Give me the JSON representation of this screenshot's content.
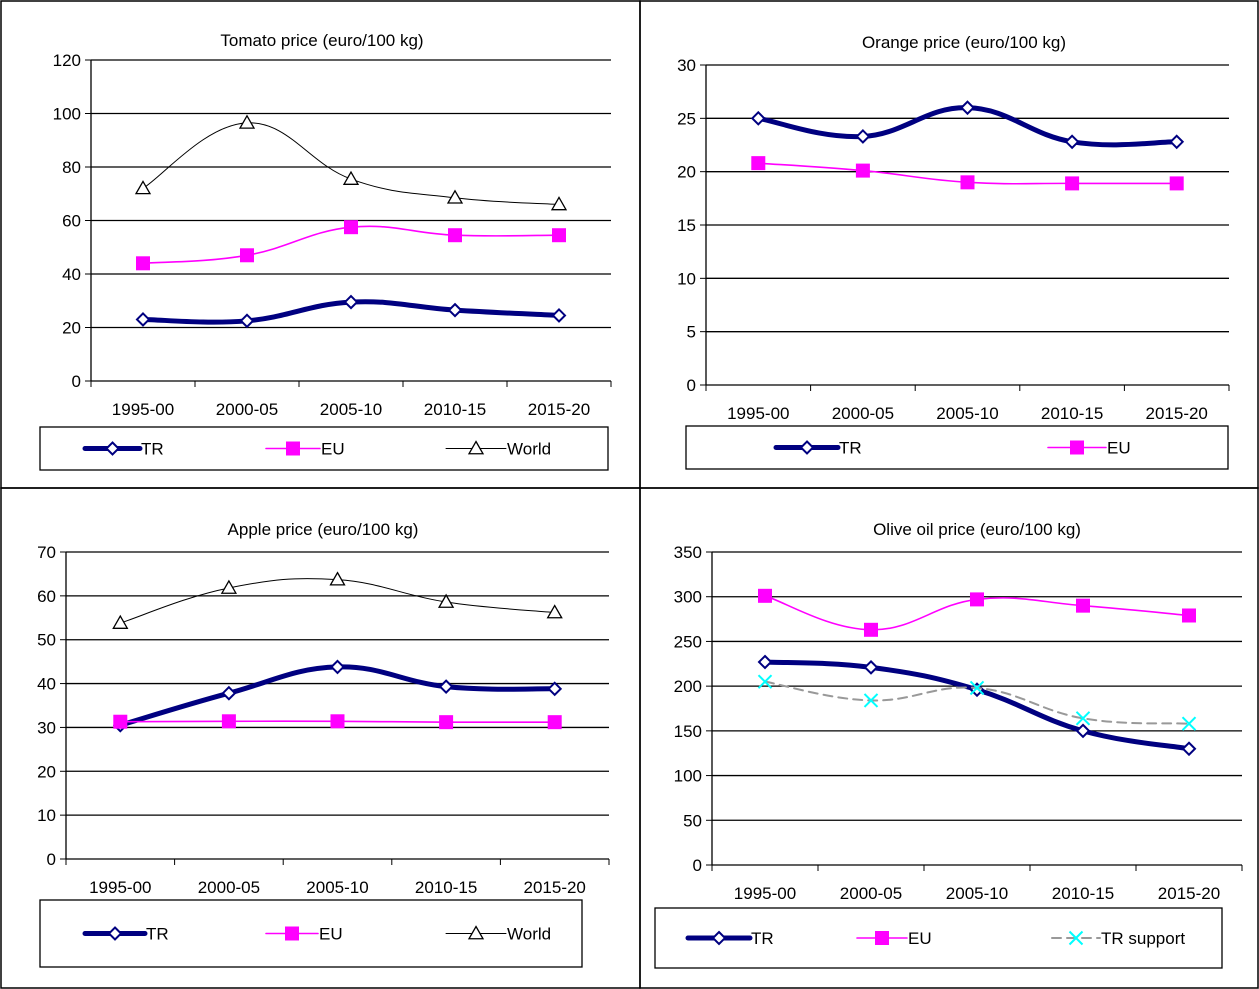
{
  "chart_data": [
    {
      "type": "line",
      "title": "Tomato price (euro/100 kg)",
      "categories": [
        "1995-00",
        "2000-05",
        "2005-10",
        "2010-15",
        "2015-20"
      ],
      "ylim": [
        0,
        120
      ],
      "ytick_step": 20,
      "grid": true,
      "legend_position": "bottom",
      "series": [
        {
          "name": "TR",
          "values": [
            23,
            22.5,
            29.5,
            26.5,
            24.5
          ],
          "color": "#000080",
          "marker": "diamond",
          "style": "thick"
        },
        {
          "name": "EU",
          "values": [
            44,
            47,
            57.5,
            54.5,
            54.5
          ],
          "color": "#ff00ff",
          "marker": "square",
          "style": "medium"
        },
        {
          "name": "World",
          "values": [
            72,
            96.5,
            75.5,
            68.5,
            66
          ],
          "color": "#000000",
          "marker": "triangle",
          "style": "thin"
        }
      ]
    },
    {
      "type": "line",
      "title": "Orange price (euro/100 kg)",
      "categories": [
        "1995-00",
        "2000-05",
        "2005-10",
        "2010-15",
        "2015-20"
      ],
      "ylim": [
        0,
        30
      ],
      "ytick_step": 5,
      "grid": true,
      "legend_position": "bottom",
      "series": [
        {
          "name": "TR",
          "values": [
            25,
            23.3,
            26,
            22.8,
            22.8
          ],
          "color": "#000080",
          "marker": "diamond",
          "style": "thick"
        },
        {
          "name": "EU",
          "values": [
            20.8,
            20.1,
            19,
            18.9,
            18.9
          ],
          "color": "#ff00ff",
          "marker": "square",
          "style": "medium"
        }
      ]
    },
    {
      "type": "line",
      "title": "Apple price (euro/100 kg)",
      "categories": [
        "1995-00",
        "2000-05",
        "2005-10",
        "2010-15",
        "2015-20"
      ],
      "ylim": [
        0,
        70
      ],
      "ytick_step": 10,
      "grid": true,
      "legend_position": "bottom",
      "series": [
        {
          "name": "TR",
          "values": [
            30.5,
            37.8,
            43.8,
            39.3,
            38.8
          ],
          "color": "#000080",
          "marker": "diamond",
          "style": "thick"
        },
        {
          "name": "EU",
          "values": [
            31.3,
            31.4,
            31.4,
            31.2,
            31.2
          ],
          "color": "#ff00ff",
          "marker": "square",
          "style": "medium"
        },
        {
          "name": "World",
          "values": [
            53.8,
            61.8,
            63.7,
            58.6,
            56.2
          ],
          "color": "#000000",
          "marker": "triangle",
          "style": "thin"
        }
      ]
    },
    {
      "type": "line",
      "title": "Olive oil price (euro/100 kg)",
      "categories": [
        "1995-00",
        "2000-05",
        "2005-10",
        "2010-15",
        "2015-20"
      ],
      "ylim": [
        0,
        350
      ],
      "ytick_step": 50,
      "grid": true,
      "legend_position": "bottom",
      "series": [
        {
          "name": "TR",
          "values": [
            227,
            221,
            196,
            150,
            130
          ],
          "color": "#000080",
          "marker": "diamond",
          "style": "thick"
        },
        {
          "name": "EU",
          "values": [
            301,
            263,
            297,
            290,
            279
          ],
          "color": "#ff00ff",
          "marker": "square",
          "style": "medium"
        },
        {
          "name": "TR support",
          "values": [
            205,
            184,
            198,
            164,
            158
          ],
          "color": "#00ffff",
          "line_color": "#999999",
          "marker": "star",
          "style": "dashed"
        }
      ]
    }
  ]
}
